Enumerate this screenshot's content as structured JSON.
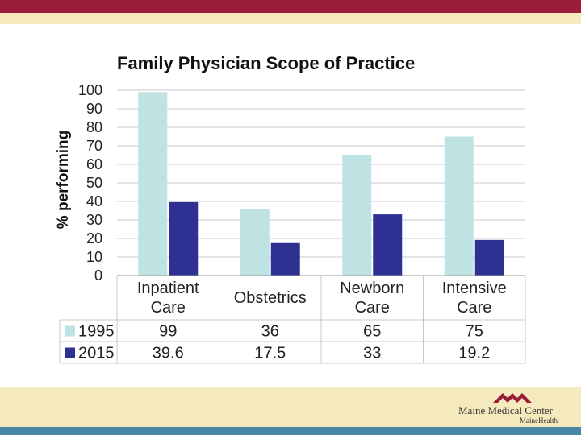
{
  "slide": {
    "colors": {
      "top_bar": "#9b1c38",
      "beige": "#f4eabd",
      "bottom_line": "#4a86a8"
    }
  },
  "chart_data": {
    "type": "bar",
    "title": "Family Physician Scope of Practice",
    "ylabel": "% performing",
    "xlabel": "",
    "ylim": [
      0,
      100
    ],
    "yticks": [
      0,
      10,
      20,
      30,
      40,
      50,
      60,
      70,
      80,
      90,
      100
    ],
    "grid": true,
    "categories": [
      [
        "Inpatient",
        "Care"
      ],
      [
        "Obstetrics"
      ],
      [
        "Newborn",
        "Care"
      ],
      [
        "Intensive",
        "Care"
      ]
    ],
    "series": [
      {
        "name": "1995",
        "color": "#bfe2e3",
        "values": [
          99,
          36,
          65,
          75
        ],
        "labels": [
          "99",
          "36",
          "65",
          "75"
        ]
      },
      {
        "name": "2015",
        "color": "#2e3192",
        "values": [
          39.6,
          17.5,
          33,
          19.2
        ],
        "labels": [
          "39.6",
          "17.5",
          "33",
          "19.2"
        ]
      }
    ],
    "data_table": true
  },
  "logo": {
    "name": "Maine Medical Center",
    "sub": "MaineHealth"
  }
}
